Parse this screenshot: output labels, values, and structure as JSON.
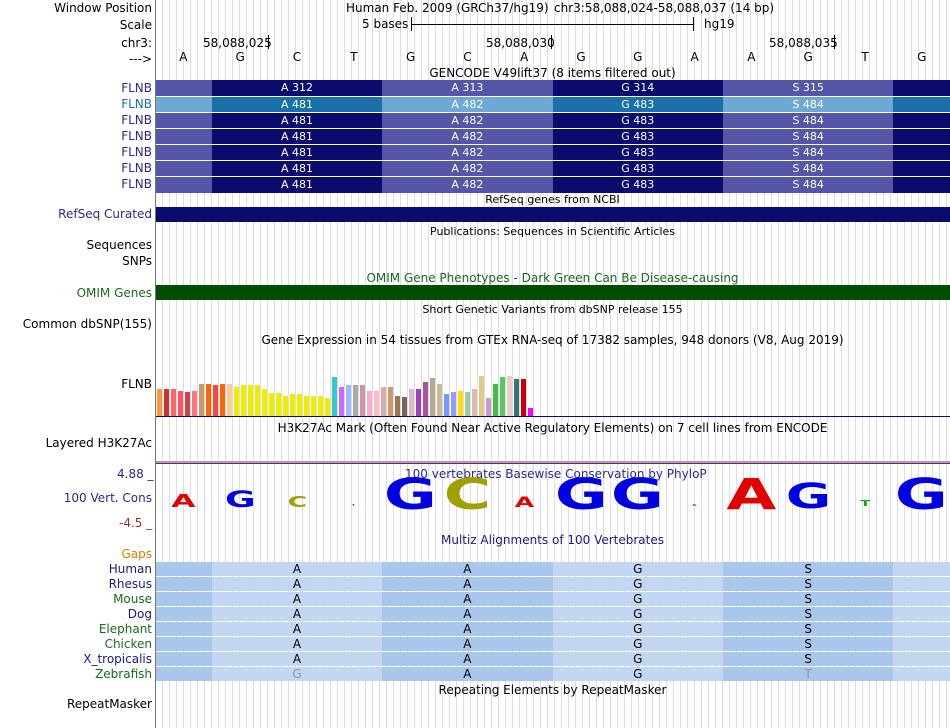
{
  "header": {
    "window_position_label": "Window Position",
    "assembly": "Human Feb. 2009 (GRCh37/hg19)",
    "position": "chr3:58,088,024-58,088,037 (14 bp)",
    "scale_label": "Scale",
    "scale_value": "5 bases",
    "scale_db": "hg19",
    "chr_label": "chr3:",
    "arrow_label": "--->",
    "coords": [
      "58,088,025",
      "58,088,030",
      "58,088,035"
    ]
  },
  "bases": [
    "A",
    "G",
    "C",
    "T",
    "G",
    "C",
    "A",
    "G",
    "G",
    "A",
    "A",
    "G",
    "T",
    "G"
  ],
  "gencode": {
    "title": "GENCODE V49lift37 (8 items filtered out)",
    "rows": [
      {
        "label": "FLNB",
        "codons": [
          "A 312",
          "A 313",
          "G 314",
          "S 315"
        ],
        "highlight": false
      },
      {
        "label": "FLNB",
        "codons": [
          "A 481",
          "A 482",
          "G 483",
          "S 484"
        ],
        "highlight": true
      },
      {
        "label": "FLNB",
        "codons": [
          "A 481",
          "A 482",
          "G 483",
          "S 484"
        ],
        "highlight": false
      },
      {
        "label": "FLNB",
        "codons": [
          "A 481",
          "A 482",
          "G 483",
          "S 484"
        ],
        "highlight": false
      },
      {
        "label": "FLNB",
        "codons": [
          "A 481",
          "A 482",
          "G 483",
          "S 484"
        ],
        "highlight": false
      },
      {
        "label": "FLNB",
        "codons": [
          "A 481",
          "A 482",
          "G 483",
          "S 484"
        ],
        "highlight": false
      },
      {
        "label": "FLNB",
        "codons": [
          "A 481",
          "A 482",
          "G 483",
          "S 484"
        ],
        "highlight": false
      }
    ]
  },
  "refseq": {
    "title": "RefSeq genes from NCBI",
    "label": "RefSeq Curated"
  },
  "publications": {
    "title": "Publications: Sequences in Scientific Articles",
    "label_sequences": "Sequences",
    "label_snps": "SNPs"
  },
  "omim": {
    "title": "OMIM Gene Phenotypes - Dark Green Can Be Disease-causing",
    "label": "OMIM Genes"
  },
  "dbsnp": {
    "title": "Short Genetic Variants from dbSNP release 155",
    "label": "Common dbSNP(155)"
  },
  "gtex": {
    "title": "Gene Expression in 54 tissues from GTEx RNA-seq of 17382 samples, 948 donors (V8, Aug 2019)",
    "label": "FLNB",
    "values": [
      0.39,
      0.39,
      0.39,
      0.36,
      0.34,
      0.36,
      0.46,
      0.46,
      0.44,
      0.46,
      0.46,
      0.41,
      0.44,
      0.44,
      0.44,
      0.39,
      0.33,
      0.33,
      0.28,
      0.31,
      0.31,
      0.28,
      0.28,
      0.28,
      0.26,
      0.56,
      0.42,
      0.44,
      0.44,
      0.44,
      0.36,
      0.36,
      0.42,
      0.42,
      0.28,
      0.27,
      0.38,
      0.39,
      0.49,
      0.54,
      0.46,
      0.31,
      0.34,
      0.35,
      0.34,
      0.38,
      0.57,
      0.26,
      0.46,
      0.55,
      0.57,
      0.53,
      0.53,
      0.11
    ],
    "colors": [
      "#ff9933",
      "#cc3333",
      "#ff6666",
      "#ff5555",
      "#cc4444",
      "#ff7777",
      "#cc9966",
      "#ff6600",
      "#ff4444",
      "#ff6600",
      "#ffcc99",
      "#eeee00",
      "#eeee00",
      "#eeee00",
      "#eeee00",
      "#eeee00",
      "#eeee00",
      "#eeee00",
      "#eeee00",
      "#eeee00",
      "#eeee00",
      "#eeee00",
      "#eeee00",
      "#eeee00",
      "#eeee00",
      "#33cccc",
      "#cc66ff",
      "#99bbff",
      "#aaaaaa",
      "#cc9999",
      "#ffaacc",
      "#ffbbbb",
      "#ddaaaa",
      "#cc9966",
      "#997755",
      "#776655",
      "#ddbbcc",
      "#9944aa",
      "#aa5599",
      "#bbaa88",
      "#ccbb99",
      "#7799ff",
      "#9999ff",
      "#ffdd00",
      "#99ccaa",
      "#ddbbaa",
      "#ddcc88",
      "#cc99cc",
      "#44bb44",
      "#55cc55",
      "#eecccc",
      "#337777",
      "#cc0000",
      "#ff00ff"
    ]
  },
  "h3k27ac": {
    "title": "H3K27Ac Mark (Often Found Near Active Regulatory Elements) on 7 cell lines from ENCODE",
    "label": "Layered H3K27Ac"
  },
  "conservation": {
    "title": "100 vertebrates Basewise Conservation by PhyloP",
    "label": "100 Vert. Cons",
    "max": "4.88 _",
    "min": "-4.5 _",
    "scores": [
      0.4,
      0.5,
      0.35,
      0.05,
      1.0,
      1.0,
      0.3,
      1.0,
      1.0,
      0.05,
      1.0,
      0.8,
      0.2,
      1.0
    ]
  },
  "multiz": {
    "title": "Multiz Alignments of 100 Vertebrates",
    "gaps_label": "Gaps",
    "species": [
      {
        "name": "Human",
        "residues": [
          "A",
          "A",
          "G",
          "S"
        ],
        "color": "#1a1a80"
      },
      {
        "name": "Rhesus",
        "residues": [
          "A",
          "A",
          "G",
          "S"
        ],
        "color": "#1a1a80"
      },
      {
        "name": "Mouse",
        "residues": [
          "A",
          "A",
          "G",
          "S"
        ],
        "color": "#1a6b1a"
      },
      {
        "name": "Dog",
        "residues": [
          "A",
          "A",
          "G",
          "S"
        ],
        "color": "#1a1a80"
      },
      {
        "name": "Elephant",
        "residues": [
          "A",
          "A",
          "G",
          "S"
        ],
        "color": "#1a6b1a"
      },
      {
        "name": "Chicken",
        "residues": [
          "A",
          "A",
          "G",
          "S"
        ],
        "color": "#1a6b1a"
      },
      {
        "name": "X_tropicalis",
        "residues": [
          "A",
          "A",
          "G",
          "S"
        ],
        "color": "#1a1a80"
      },
      {
        "name": "Zebrafish",
        "residues": [
          "G",
          "A",
          "G",
          "T"
        ],
        "color": "#1a6b1a"
      }
    ]
  },
  "repeatmasker": {
    "title": "Repeating Elements by RepeatMasker",
    "label": "RepeatMasker"
  },
  "colors": {
    "gene_dark": "#0b0b6e",
    "gene_mid": "#5656a8",
    "gene_hl_dark": "#1a70a8",
    "gene_hl_light": "#6ea8d4",
    "omim": "#004d00",
    "label_blue": "#2a2a8a",
    "label_green": "#1a6b1a",
    "label_orange": "#e07a00"
  }
}
